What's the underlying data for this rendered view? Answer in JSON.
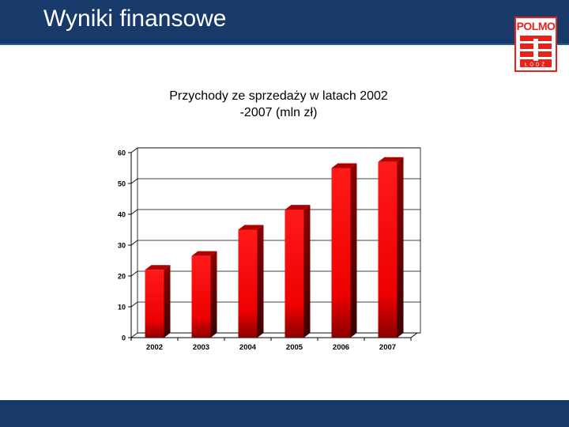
{
  "header": {
    "title": "Wyniki finansowe"
  },
  "logo": {
    "text": "POLMO",
    "sub": "ŁÓDŹ",
    "icon": "polmo-logo-icon"
  },
  "colors": {
    "header": "#173a6b",
    "bar": "#ff0000",
    "bar_dark": "#8b0000",
    "logo": "#e8221b"
  },
  "chart_data": {
    "type": "bar",
    "title_lines": [
      "Przychody ze sprzedaży w latach 2002",
      "-2007 (mln zł)"
    ],
    "categories": [
      "2002",
      "2003",
      "2004",
      "2005",
      "2006",
      "2007"
    ],
    "values": [
      22,
      26.5,
      35,
      41.5,
      55,
      57
    ],
    "ylim": [
      0,
      60
    ],
    "yticks": [
      "0",
      "10",
      "20",
      "30",
      "40",
      "50",
      "60"
    ],
    "xlabel": "",
    "ylabel": "",
    "grid": true,
    "style": "3d"
  }
}
